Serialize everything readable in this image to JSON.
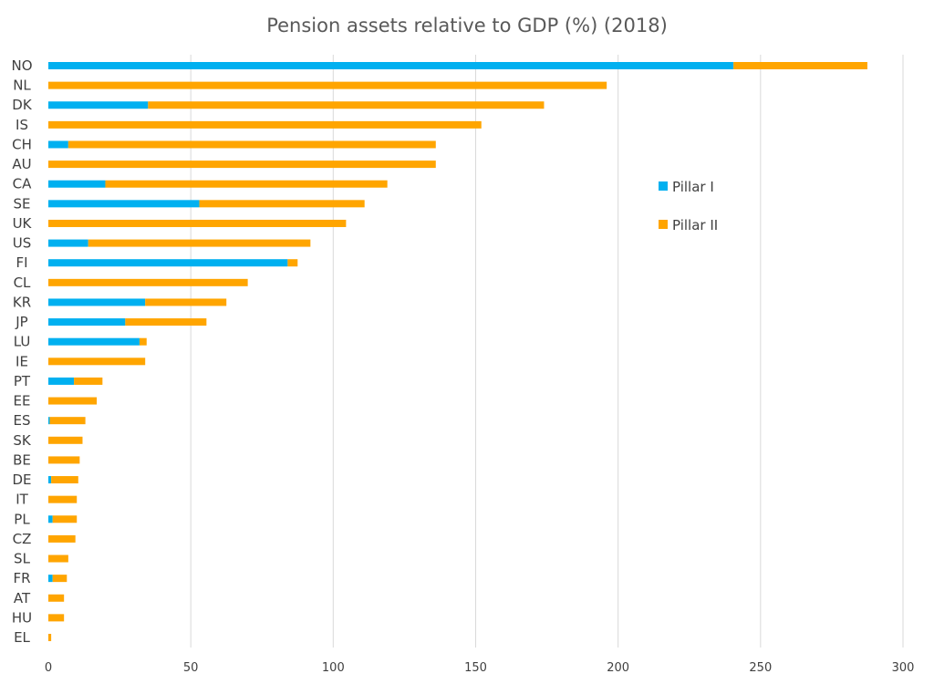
{
  "chart_data": {
    "type": "bar",
    "orientation": "horizontal",
    "stacked": true,
    "title": "Pension assets relative to GDP (%) (2018)",
    "xlabel": "",
    "ylabel": "",
    "xlim": [
      0,
      300
    ],
    "x_ticks": [
      0,
      50,
      100,
      150,
      200,
      250,
      300
    ],
    "x_tick_labels": [
      "0",
      "50",
      "100",
      "150",
      "200",
      "250",
      "300"
    ],
    "grid": "vertical",
    "legend_position": "right-inside",
    "categories": [
      "NO",
      "NL",
      "DK",
      "IS",
      "CH",
      "AU",
      "CA",
      "SE",
      "UK",
      "US",
      "FI",
      "CL",
      "KR",
      "JP",
      "LU",
      "IE",
      "PT",
      "EE",
      "ES",
      "SK",
      "BE",
      "DE",
      "IT",
      "PL",
      "CZ",
      "SL",
      "FR",
      "AT",
      "HU",
      "EL"
    ],
    "series": [
      {
        "name": "Pillar I",
        "color": "#00b0f0",
        "values": [
          240.5,
          0,
          35,
          0,
          7,
          0,
          20,
          53,
          0,
          14,
          84,
          0,
          34,
          27,
          32,
          0,
          9,
          0,
          0.5,
          0,
          0,
          1,
          0,
          1.5,
          0,
          0,
          1.5,
          0,
          0,
          0
        ]
      },
      {
        "name": "Pillar II",
        "color": "#ffa500",
        "values": [
          47,
          196,
          139,
          152,
          129,
          136,
          99,
          58,
          104.5,
          78,
          3.5,
          70,
          28.5,
          28.5,
          2.5,
          34,
          10,
          17,
          12.5,
          12,
          11,
          9.5,
          10,
          8.5,
          9.5,
          7,
          5,
          5.5,
          5.5,
          1
        ]
      }
    ]
  }
}
